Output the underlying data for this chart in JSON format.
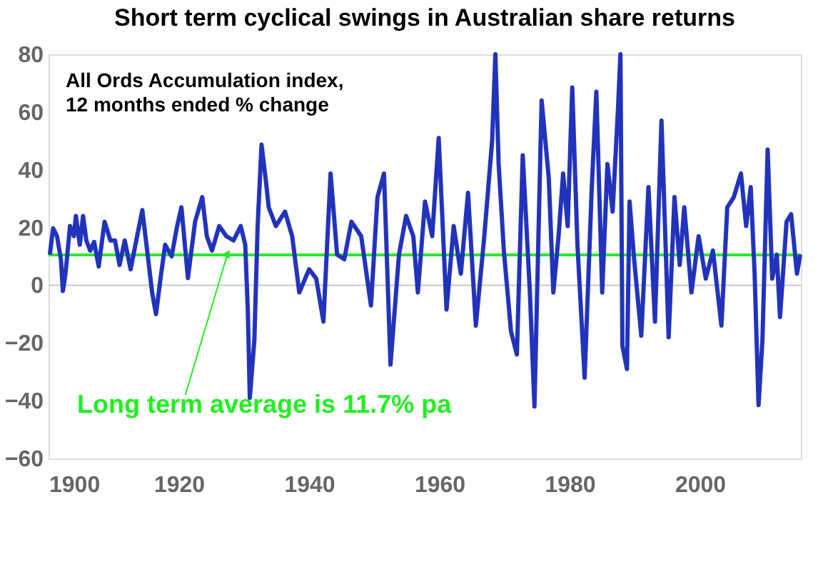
{
  "chart_data": {
    "type": "line",
    "title": "Short term cyclical swings in Australian share returns",
    "subtitle": "All Ords Accumulation index,\n12 months ended % change",
    "series": [
      {
        "color": "#2233bb",
        "x": [
          1900.2,
          1900.7,
          1901.3,
          1901.9,
          1902.2,
          1902.6,
          1903.3,
          1903.9,
          1904.2,
          1904.8,
          1905.3,
          1905.8,
          1906.4,
          1907.0,
          1907.7,
          1908.6,
          1909.5,
          1910.2,
          1910.9,
          1911.7,
          1912.6,
          1913.6,
          1914.4,
          1915.3,
          1915.9,
          1916.5,
          1917.2,
          1917.9,
          1918.9,
          1919.7,
          1920.4,
          1921.4,
          1922.5,
          1923.6,
          1924.3,
          1925.1,
          1926.2,
          1927.3,
          1928.4,
          1929.5,
          1930.2,
          1930.6,
          1930.9,
          1931.6,
          1932.1,
          1932.7,
          1933.4,
          1933.8,
          1934.9,
          1936.3,
          1937.4,
          1938.5,
          1940.0,
          1941.1,
          1942.2,
          1943.3,
          1944.3,
          1945.4,
          1946.5,
          1948.0,
          1949.5,
          1950.5,
          1951.5,
          1952.5,
          1953.8,
          1954.9,
          1956.0,
          1956.7,
          1957.8,
          1958.9,
          1959.9,
          1961.1,
          1962.2,
          1963.3,
          1964.4,
          1965.6,
          1966.9,
          1968.1,
          1968.6,
          1969.1,
          1969.9,
          1971.0,
          1971.9,
          1972.8,
          1973.9,
          1974.6,
          1975.7,
          1976.8,
          1977.5,
          1978.3,
          1979.0,
          1979.7,
          1980.4,
          1981.2,
          1982.3,
          1983.4,
          1984.1,
          1985.0,
          1985.8,
          1986.6,
          1987.4,
          1987.8,
          1988.1,
          1988.8,
          1989.2,
          1989.9,
          1991.0,
          1992.1,
          1993.1,
          1994.1,
          1995.2,
          1996.1,
          1996.9,
          1997.6,
          1998.7,
          1999.8,
          2000.9,
          2002.0,
          2003.3,
          2004.2,
          2005.2,
          2006.3,
          2007.1,
          2007.8,
          2008.4,
          2009.0,
          2009.6,
          2010.4,
          2011.1,
          2011.8,
          2012.3,
          2013.3,
          2014.0,
          2014.9,
          2015.4
        ],
        "values": [
          10.6,
          19.7,
          17,
          9,
          -2,
          4,
          20.5,
          17,
          24,
          14,
          24,
          15.5,
          12,
          15,
          6.5,
          22,
          15.5,
          15.5,
          7,
          15.5,
          5.5,
          17,
          26,
          9,
          -2.5,
          -10,
          2.5,
          14,
          10,
          20,
          27,
          2.5,
          22,
          30.5,
          17,
          12,
          20.5,
          17,
          15.5,
          20.5,
          14,
          -9,
          -39,
          -19,
          20.5,
          48.7,
          35.5,
          27,
          20.5,
          25.5,
          17,
          -2.5,
          5.5,
          2.3,
          -12.6,
          38.7,
          10.6,
          9,
          22,
          17,
          -7,
          30.5,
          38.7,
          -27.5,
          10.6,
          24,
          17,
          -2.5,
          29,
          17,
          51,
          -8.4,
          20.5,
          4,
          32,
          -14,
          17,
          50,
          80,
          42,
          12,
          -16,
          -24,
          45,
          -2.5,
          -42,
          64,
          37,
          -2.5,
          17,
          38.7,
          20.5,
          68.5,
          14,
          -32,
          34,
          67,
          -2.5,
          42,
          25.5,
          60,
          80,
          -21,
          -29,
          29,
          9,
          -17.5,
          34,
          -12.6,
          57,
          -18,
          30.5,
          7,
          27,
          -2.5,
          17,
          2.3,
          12,
          -14,
          27,
          30.5,
          38.7,
          20.5,
          34,
          4,
          -41.5,
          -19,
          47,
          2.3,
          10.6,
          -11,
          22,
          24.6,
          4,
          10.6
        ]
      }
    ],
    "xlim": [
      1900,
      2015.5
    ],
    "xticks": [
      1900,
      1920,
      1940,
      1960,
      1980,
      2000
    ],
    "ylim": [
      -60,
      80
    ],
    "yticks": [
      -60,
      -40,
      -20,
      0,
      20,
      40,
      60,
      80
    ],
    "grid": false,
    "line_style": "solid",
    "marker": "none",
    "ref_lines": [
      {
        "axis": "y",
        "value": 0,
        "color": "#c8c8c8"
      },
      {
        "axis": "y",
        "value": 10.5,
        "label": "Long term average is 11.7% pa",
        "color": "#22ee22"
      }
    ]
  }
}
